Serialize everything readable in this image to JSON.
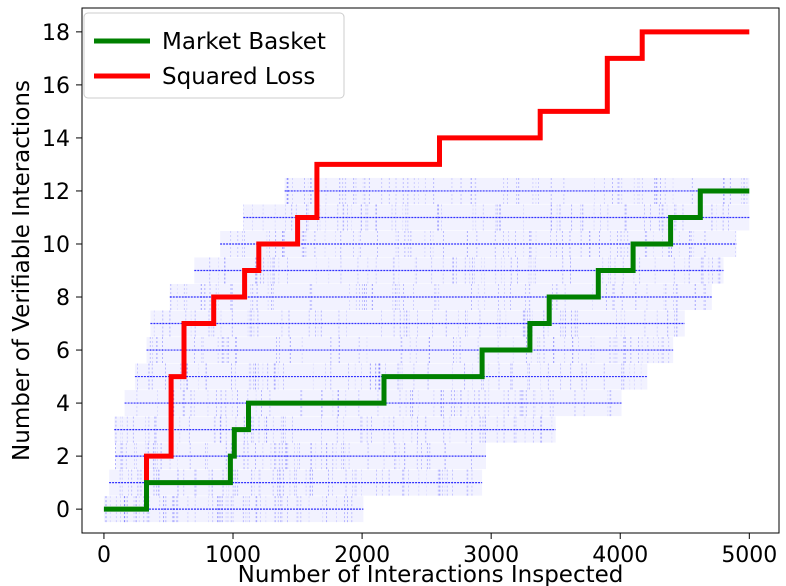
{
  "chart_data": {
    "type": "line",
    "title": "",
    "xlabel": "Number of Interactions Inspected",
    "ylabel": "Number of Verifiable Interactions",
    "xlim": [
      -170,
      5230
    ],
    "ylim": [
      -0.9,
      18.9
    ],
    "xticks": [
      0,
      1000,
      2000,
      3000,
      4000,
      5000
    ],
    "yticks": [
      0,
      2,
      4,
      6,
      8,
      10,
      12,
      14,
      16,
      18
    ],
    "grid": false,
    "legend_position": "top-left",
    "series": [
      {
        "name": "Market Basket",
        "color": "#008000",
        "x": [
          0,
          330,
          330,
          980,
          980,
          1010,
          1010,
          1120,
          1120,
          2170,
          2170,
          2930,
          2930,
          3300,
          3300,
          3450,
          3450,
          3830,
          3830,
          4100,
          4100,
          4390,
          4390,
          4620,
          4620,
          5000
        ],
        "y": [
          0,
          0,
          1,
          1,
          2,
          2,
          3,
          3,
          4,
          4,
          5,
          5,
          6,
          6,
          7,
          7,
          8,
          8,
          9,
          9,
          10,
          10,
          11,
          11,
          12,
          12
        ]
      },
      {
        "name": "Squared Loss",
        "color": "#ff0000",
        "x": [
          330,
          330,
          520,
          520,
          620,
          620,
          850,
          850,
          1090,
          1090,
          1200,
          1200,
          1500,
          1500,
          1650,
          1650,
          2600,
          2600,
          3380,
          3380,
          3900,
          3900,
          4170,
          4170,
          5000
        ],
        "y": [
          0,
          2,
          2,
          5,
          5,
          7,
          7,
          8,
          8,
          9,
          9,
          10,
          10,
          11,
          11,
          13,
          13,
          14,
          14,
          15,
          15,
          17,
          17,
          18,
          18
        ]
      }
    ],
    "background_band": {
      "description_color": "#0000ff",
      "levels": [
        0,
        1,
        2,
        3,
        4,
        5,
        6,
        7,
        8,
        9,
        10,
        11,
        12
      ],
      "start": [
        0,
        40,
        90,
        80,
        160,
        240,
        330,
        360,
        510,
        700,
        900,
        1080,
        1400
      ],
      "end": [
        2010,
        2930,
        2960,
        3500,
        4010,
        4210,
        4410,
        4500,
        4710,
        4800,
        4900,
        5000,
        5000
      ]
    }
  }
}
